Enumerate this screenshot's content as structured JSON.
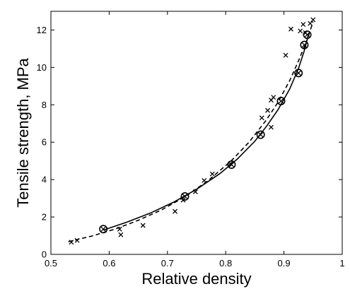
{
  "chart_data": {
    "type": "scatter",
    "xlabel": "Relative density",
    "ylabel": "Tensile strength, MPa",
    "xlim": [
      0.5,
      1
    ],
    "ylim": [
      0,
      13
    ],
    "xticks": [
      0.5,
      0.6,
      0.7,
      0.8,
      0.9,
      1
    ],
    "xtick_labels": [
      "0.5",
      "0.6",
      "0.7",
      "0.8",
      "0.9",
      "1"
    ],
    "yticks": [
      0,
      2,
      4,
      6,
      8,
      10,
      12
    ],
    "ytick_labels": [
      "0",
      "2",
      "4",
      "6",
      "8",
      "10",
      "12"
    ],
    "grid": false,
    "series": [
      {
        "marker": "x",
        "points": [
          {
            "x": 0.535,
            "y": 0.65
          },
          {
            "x": 0.545,
            "y": 0.75
          },
          {
            "x": 0.62,
            "y": 1.05
          },
          {
            "x": 0.618,
            "y": 1.35
          },
          {
            "x": 0.658,
            "y": 1.55
          },
          {
            "x": 0.713,
            "y": 2.3
          },
          {
            "x": 0.727,
            "y": 2.9
          },
          {
            "x": 0.748,
            "y": 3.35
          },
          {
            "x": 0.763,
            "y": 3.95
          },
          {
            "x": 0.777,
            "y": 4.3
          },
          {
            "x": 0.808,
            "y": 4.85
          },
          {
            "x": 0.862,
            "y": 7.3
          },
          {
            "x": 0.872,
            "y": 7.7
          },
          {
            "x": 0.878,
            "y": 6.8
          },
          {
            "x": 0.878,
            "y": 8.25
          },
          {
            "x": 0.882,
            "y": 8.4
          },
          {
            "x": 0.903,
            "y": 10.65
          },
          {
            "x": 0.912,
            "y": 12.05
          },
          {
            "x": 0.928,
            "y": 11.95
          },
          {
            "x": 0.933,
            "y": 12.3
          },
          {
            "x": 0.937,
            "y": 11.85
          },
          {
            "x": 0.945,
            "y": 12.35
          },
          {
            "x": 0.95,
            "y": 12.55
          }
        ]
      },
      {
        "marker": "circled-x",
        "points": [
          {
            "x": 0.59,
            "y": 1.35
          },
          {
            "x": 0.73,
            "y": 3.1
          },
          {
            "x": 0.81,
            "y": 4.8
          },
          {
            "x": 0.86,
            "y": 6.4
          },
          {
            "x": 0.895,
            "y": 8.2
          },
          {
            "x": 0.925,
            "y": 9.7
          },
          {
            "x": 0.935,
            "y": 11.2
          },
          {
            "x": 0.94,
            "y": 11.75
          }
        ]
      }
    ],
    "curves": [
      {
        "style": "solid",
        "x": [
          0.59,
          0.63,
          0.67,
          0.71,
          0.75,
          0.79,
          0.82,
          0.85,
          0.87,
          0.89,
          0.91,
          0.925,
          0.935,
          0.942
        ],
        "y": [
          1.3,
          1.72,
          2.2,
          2.78,
          3.48,
          4.32,
          5.1,
          6.05,
          6.85,
          7.75,
          8.85,
          9.95,
          10.9,
          11.75
        ]
      },
      {
        "style": "dashed",
        "x": [
          0.53,
          0.57,
          0.61,
          0.65,
          0.69,
          0.73,
          0.77,
          0.81,
          0.84,
          0.87,
          0.89,
          0.91,
          0.925,
          0.94,
          0.95
        ],
        "y": [
          0.68,
          0.98,
          1.35,
          1.82,
          2.38,
          3.08,
          3.95,
          5.02,
          6.0,
          7.2,
          8.15,
          9.3,
          10.35,
          11.5,
          12.45
        ]
      }
    ]
  }
}
